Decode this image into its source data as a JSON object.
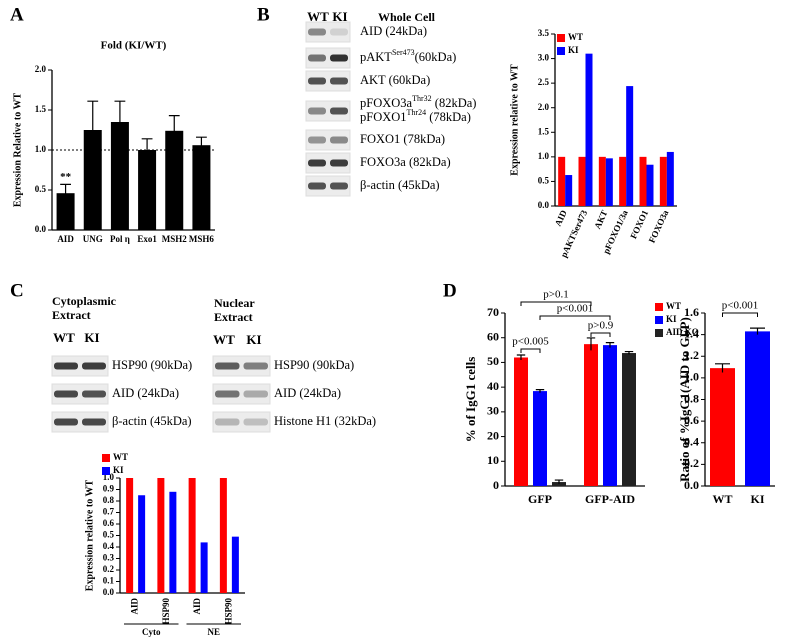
{
  "panel_labels": [
    "A",
    "B",
    "C",
    "D"
  ],
  "blots": [
    {
      "title": [
        "Whole Cell"
      ],
      "lanes": [
        "WT",
        "KI"
      ],
      "rows": [
        {
          "text": "AID (24kDa)"
        },
        {
          "text": "pAKT",
          "sup": "Ser473",
          "suffix": "(60kDa)"
        },
        {
          "text": "AKT (60kDa)"
        },
        {
          "text": "pFOXO3a",
          "sup": "Thr32",
          "suffix": " (82kDa)"
        },
        {
          "text": "pFOXO1",
          "sup": "Thr24",
          "suffix": "  (78kDa)"
        },
        {
          "text": "FOXO1 (78kDa)"
        },
        {
          "text": "FOXO3a (82kDa)"
        },
        {
          "text": "β-actin (45kDa)"
        }
      ]
    },
    {
      "title": [
        "Cytoplasmic",
        "Extract"
      ],
      "lanes": [
        "WT",
        "KI"
      ],
      "rows": [
        {
          "text": "HSP90 (90kDa)"
        },
        {
          "text": "AID (24kDa)"
        },
        {
          "text": "β-actin (45kDa)"
        }
      ]
    },
    {
      "title": [
        "Nuclear",
        "Extract"
      ],
      "lanes": [
        "WT",
        "KI"
      ],
      "rows": [
        {
          "text": "HSP90 (90kDa)"
        },
        {
          "text": "AID (24kDa)"
        },
        {
          "text": "Histone H1 (32kDa)"
        }
      ]
    }
  ],
  "chart_data": [
    {
      "type": "bar",
      "title": "Fold (KI/WT)",
      "ylabel": "Expression Relative to WT",
      "categories": [
        "AID",
        "UNG",
        "Pol η",
        "Exo1",
        "MSH2",
        "MSH6"
      ],
      "values": [
        0.46,
        1.25,
        1.35,
        1.0,
        1.24,
        1.06
      ],
      "errors": [
        0.11,
        0.36,
        0.26,
        0.14,
        0.19,
        0.1
      ],
      "color": "#000000",
      "reference_line": 1,
      "annotations": [
        "**"
      ],
      "ylim": [
        0,
        2
      ],
      "yticks": [
        {
          "value": 0,
          "label": "0.0"
        },
        0.5,
        {
          "value": 1,
          "label": "1.0"
        },
        1.5,
        {
          "value": 2,
          "label": "2.0"
        }
      ]
    },
    {
      "type": "bar",
      "ylabel": "Expression relative to WT",
      "categories": [
        "AID",
        "pAKTSer473",
        "AKT",
        "pFOXO1/3a",
        "FOXO1",
        "FOXO3a"
      ],
      "series": [
        {
          "name": "WT",
          "color": "#ff0000",
          "values": [
            1,
            1,
            1,
            1,
            1,
            1
          ]
        },
        {
          "name": "KI",
          "color": "#0000ff",
          "values": [
            0.63,
            3.1,
            0.97,
            2.44,
            0.84,
            1.1
          ]
        }
      ],
      "legend": "upper left",
      "ylim": [
        0,
        3.5
      ],
      "yticks": [
        {
          "value": 0,
          "label": "0.0"
        },
        0.5,
        {
          "value": 1,
          "label": "1.0"
        },
        1.5,
        {
          "value": 2,
          "label": "2.0"
        },
        2.5,
        {
          "value": 3,
          "label": "3.0"
        },
        3.5
      ]
    },
    {
      "type": "bar",
      "ylabel": "Expression relative to WT",
      "categories": [
        "AID",
        "HSP90",
        "AID",
        "HSP90"
      ],
      "group_labels": [
        "Cyto",
        "NE"
      ],
      "series": [
        {
          "name": "WT",
          "color": "#ff0000",
          "values": [
            1,
            1,
            1,
            1
          ]
        },
        {
          "name": "KI",
          "color": "#0000ff",
          "values": [
            0.85,
            0.88,
            0.44,
            0.49
          ]
        }
      ],
      "legend": "upper left",
      "ylim": [
        0,
        1
      ],
      "yticks": [
        {
          "value": 0,
          "label": "0.0"
        },
        0.1,
        0.2,
        0.3,
        0.4,
        0.5,
        0.6,
        0.7,
        0.8,
        0.9,
        {
          "value": 1,
          "label": "1.0"
        }
      ]
    },
    {
      "type": "bar",
      "ylabel": "% of IgG1 cells",
      "categories": [
        "GFP",
        "GFP-AID"
      ],
      "series": [
        {
          "name": "WT",
          "color": "#ff0000",
          "values": [
            52,
            57.4
          ],
          "errors": [
            1,
            2.5
          ]
        },
        {
          "name": "KI",
          "color": "#0000ff",
          "values": [
            38.4,
            57
          ],
          "errors": [
            0.6,
            1
          ]
        },
        {
          "name": "AID KO",
          "color": "#222222",
          "values": [
            1.6,
            53.8
          ],
          "errors": [
            0.8,
            0.6
          ]
        }
      ],
      "legend": "right",
      "annotations": [
        "p>0.1",
        "p<0.001",
        "p>0.9",
        "p<0.005"
      ],
      "ylim": [
        0,
        70
      ],
      "yticks": [
        0,
        10,
        20,
        30,
        40,
        50,
        60,
        70
      ]
    },
    {
      "type": "bar",
      "ylabel": "Ratio of %IgG1(AID to GFP)",
      "categories": [
        "WT",
        "KI"
      ],
      "values": [
        1.09,
        1.43
      ],
      "errors": [
        0.04,
        0.03
      ],
      "colors": [
        "#ff0000",
        "#0000ff"
      ],
      "annotations": [
        "p<0.001"
      ],
      "ylim": [
        0,
        1.6
      ],
      "yticks": [
        {
          "value": 0,
          "label": "0.0"
        },
        0.2,
        0.4,
        0.6,
        0.8,
        {
          "value": 1,
          "label": "1.0"
        },
        1.2,
        1.4,
        1.6
      ]
    }
  ]
}
